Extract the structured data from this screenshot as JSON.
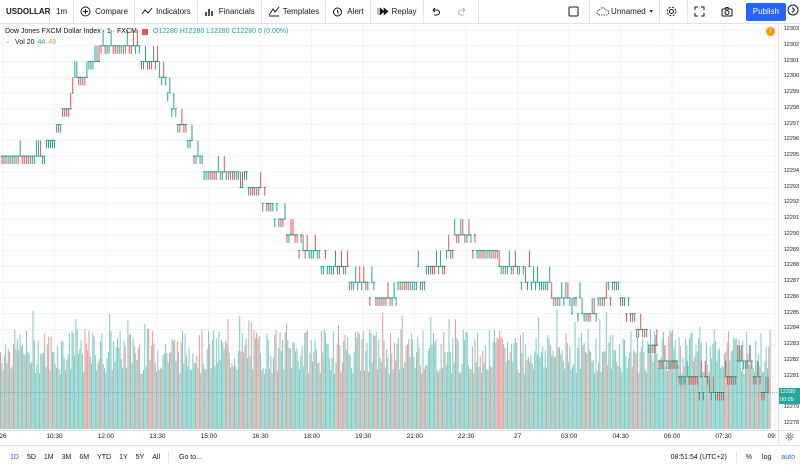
{
  "toolbar": {
    "symbol": "USDOLLAR",
    "interval": "1m",
    "compare": "Compare",
    "indicators": "Indicators",
    "financials": "Financials",
    "templates": "Templates",
    "alert": "Alert",
    "replay": "Replay",
    "layout_name": "Unnamed",
    "publish": "Publish"
  },
  "legend": {
    "series_name": "Dow Jones FXCM Dollar Index · 1 · FXCM",
    "ohlc": "O12280 H12280 L12280 C12280 0 (0.00%)",
    "vol_label": "Vol 20",
    "vol_value_1": "44",
    "vol_value_2": "49"
  },
  "alert_badge": "!",
  "price_scale": {
    "labels": [
      "12303",
      "12302",
      "12301",
      "12300",
      "12299",
      "12298",
      "12297",
      "12296",
      "12295",
      "12294",
      "12293",
      "12292",
      "12291",
      "12290",
      "12289",
      "12288",
      "12287",
      "12286",
      "12285",
      "12284",
      "12283",
      "12282",
      "12281",
      "12280",
      "12279",
      "12278"
    ],
    "last_price": "12280",
    "countdown": "00:05"
  },
  "time_scale": {
    "labels": [
      "26",
      "10:30",
      "12:00",
      "13:30",
      "15:00",
      "16:30",
      "18:00",
      "19:30",
      "21:00",
      "22:30",
      "27",
      "03:00",
      "04:30",
      "06:00",
      "07:30",
      "09:"
    ]
  },
  "bottom_bar": {
    "ranges": [
      "1D",
      "5D",
      "1M",
      "3M",
      "6M",
      "YTD",
      "1Y",
      "5Y",
      "All"
    ],
    "goto": "Go to...",
    "clock": "08:51:54 (UTC+2)",
    "percent": "%",
    "log": "log",
    "auto": "auto"
  },
  "colors": {
    "up": "#26a69a",
    "down": "#ef5350",
    "accent": "#2962ff",
    "volume_up": "#80cbc4",
    "volume_down": "#ef9a9a"
  },
  "chart_data": {
    "type": "bar",
    "xlabel": "",
    "ylabel": "",
    "ylim": [
      12278,
      12303
    ],
    "grid": true,
    "price_path": [
      {
        "t": "26",
        "price": 12295
      },
      {
        "t": "10:30",
        "price": 12295
      },
      {
        "t": "11:15",
        "price": 12296
      },
      {
        "t": "12:00",
        "price": 12300
      },
      {
        "t": "12:30",
        "price": 12302
      },
      {
        "t": "13:30",
        "price": 12302
      },
      {
        "t": "14:15",
        "price": 12301
      },
      {
        "t": "15:00",
        "price": 12297
      },
      {
        "t": "15:30",
        "price": 12294
      },
      {
        "t": "16:30",
        "price": 12294
      },
      {
        "t": "17:15",
        "price": 12293
      },
      {
        "t": "18:00",
        "price": 12291
      },
      {
        "t": "18:45",
        "price": 12289
      },
      {
        "t": "19:30",
        "price": 12288
      },
      {
        "t": "20:30",
        "price": 12287
      },
      {
        "t": "21:00",
        "price": 12286
      },
      {
        "t": "21:45",
        "price": 12287
      },
      {
        "t": "22:30",
        "price": 12288
      },
      {
        "t": "23:15",
        "price": 12290
      },
      {
        "t": "27",
        "price": 12289
      },
      {
        "t": "01:30",
        "price": 12288
      },
      {
        "t": "02:15",
        "price": 12287
      },
      {
        "t": "03:00",
        "price": 12286
      },
      {
        "t": "03:45",
        "price": 12285
      },
      {
        "t": "04:30",
        "price": 12287
      },
      {
        "t": "05:15",
        "price": 12284
      },
      {
        "t": "06:00",
        "price": 12282
      },
      {
        "t": "06:45",
        "price": 12281
      },
      {
        "t": "07:30",
        "price": 12280
      },
      {
        "t": "08:15",
        "price": 12282
      },
      {
        "t": "08:51",
        "price": 12280
      }
    ]
  }
}
